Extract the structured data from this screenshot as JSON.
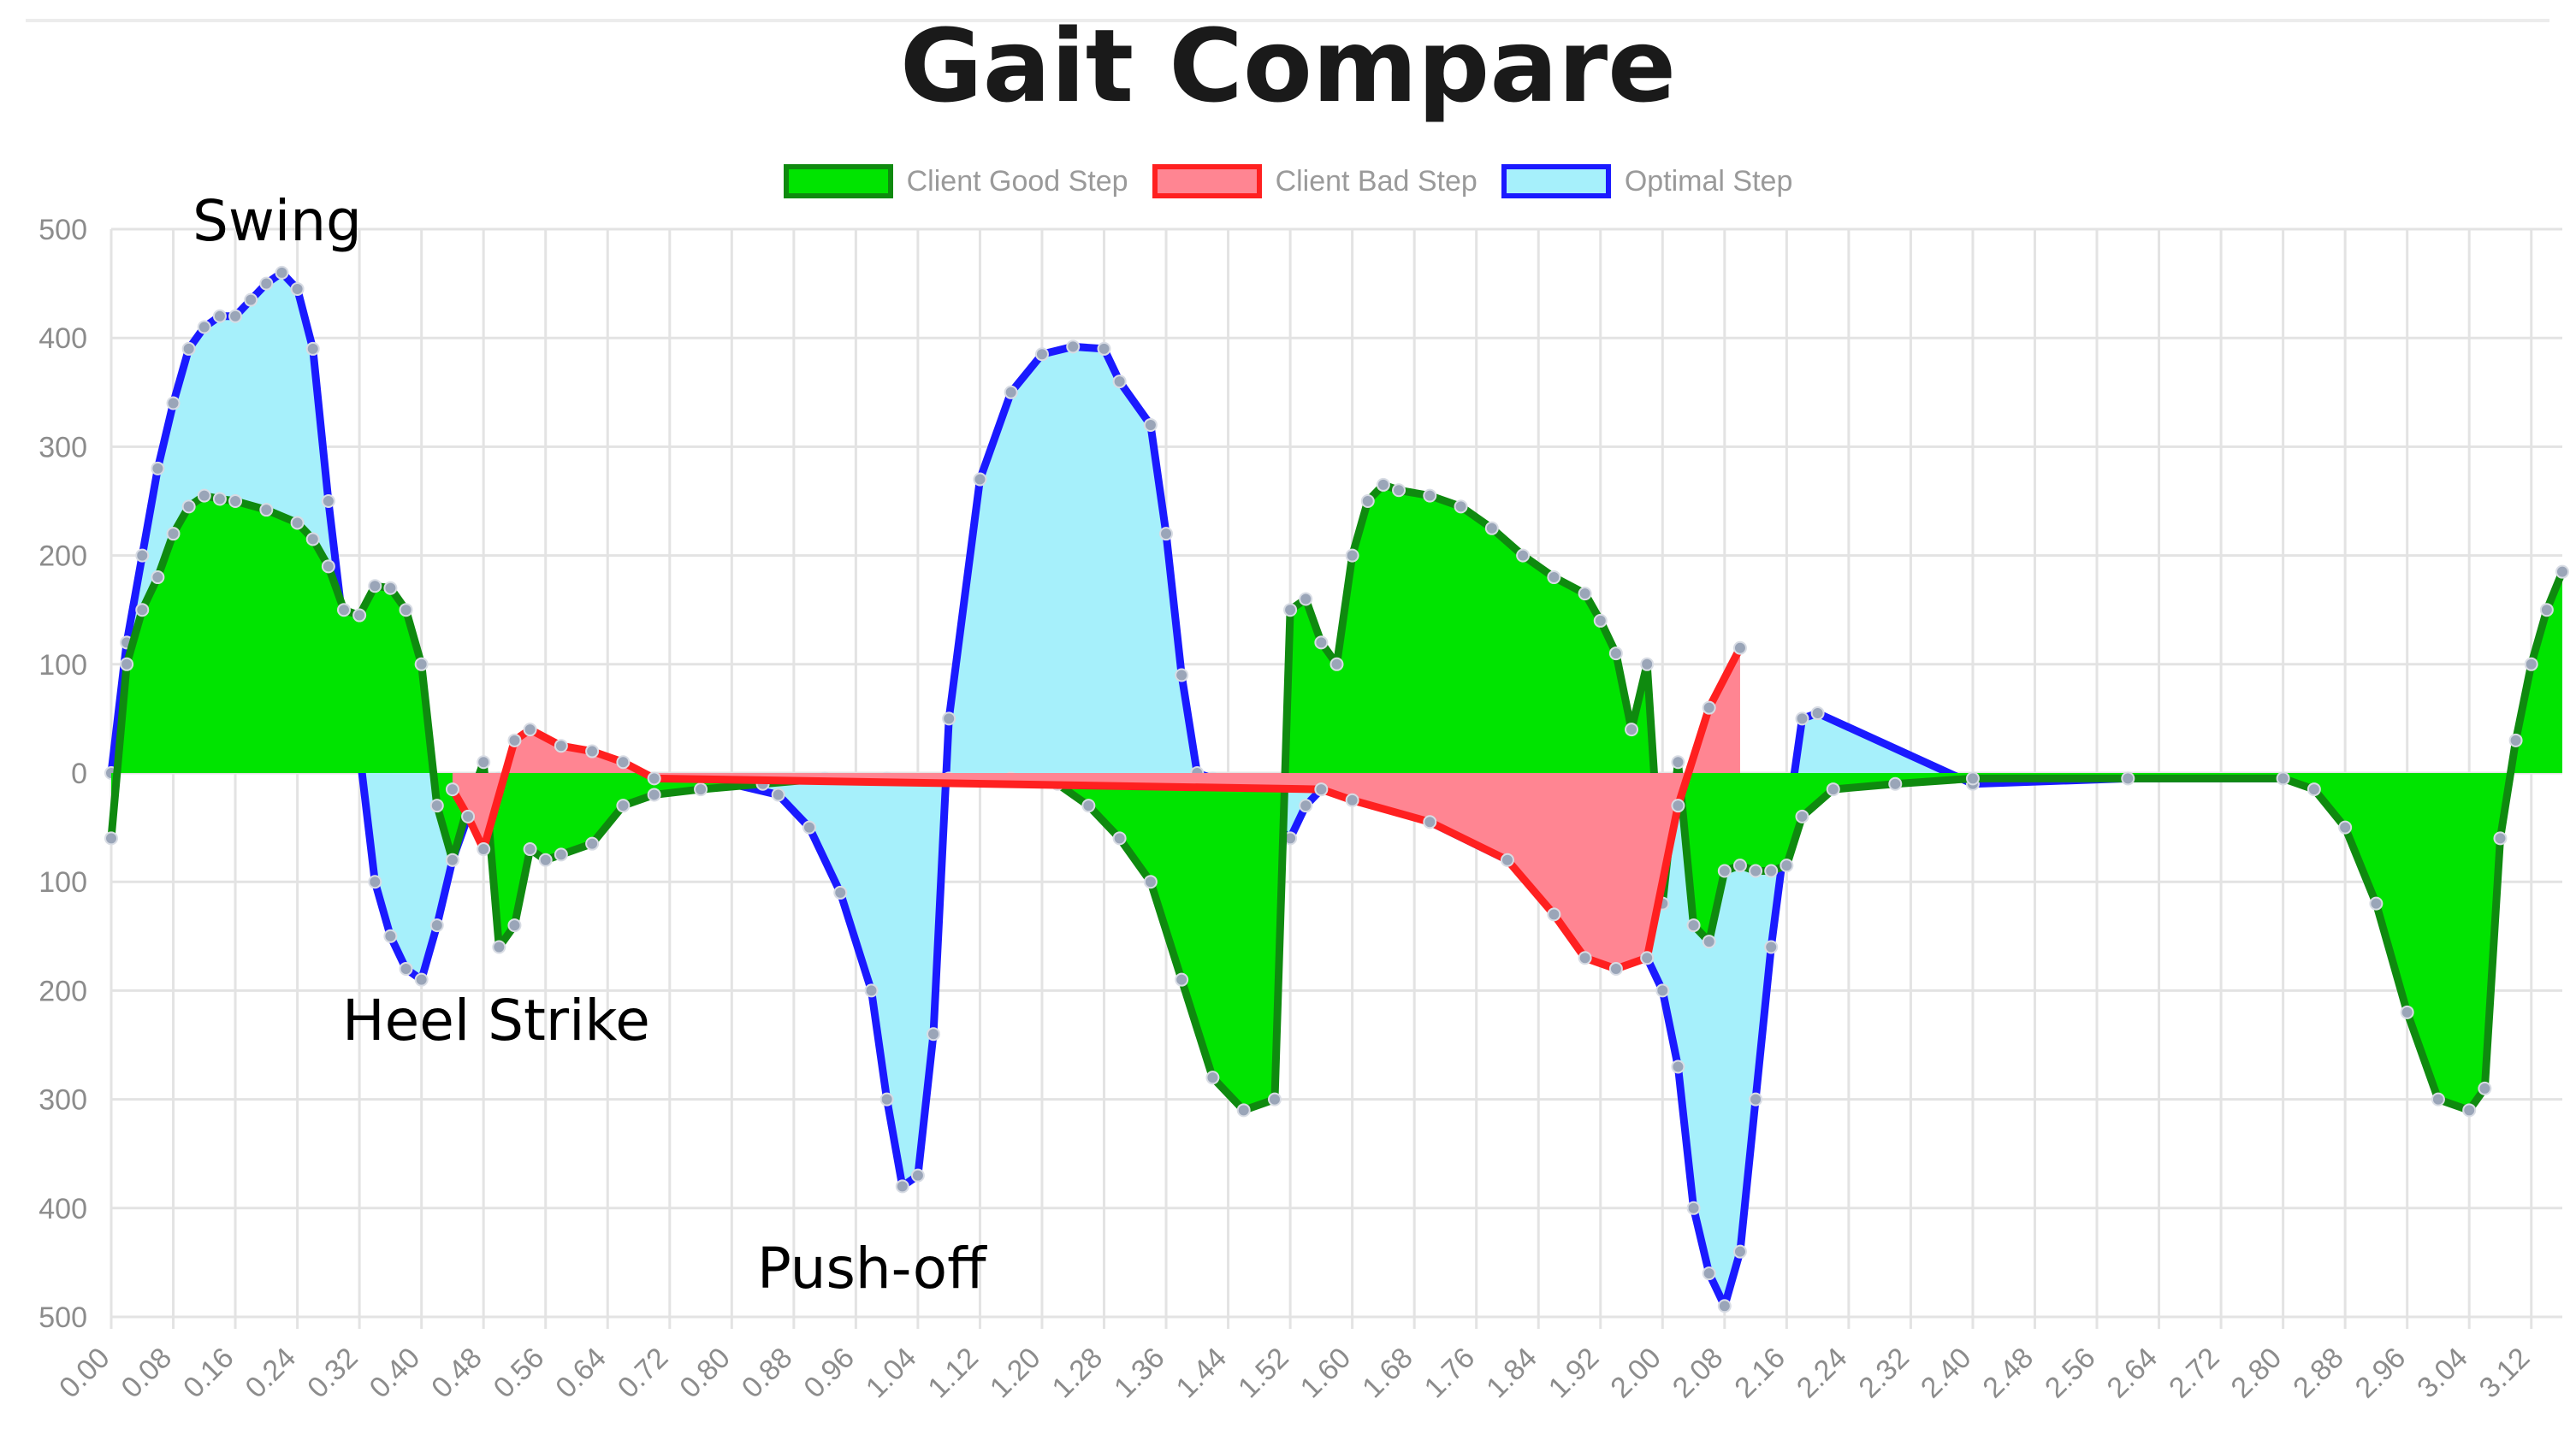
{
  "chart_data": {
    "type": "area",
    "title": "Gait Compare",
    "xlabel": "",
    "ylabel": "",
    "ylim": [
      -500,
      500
    ],
    "yticks": [
      500,
      400,
      300,
      200,
      100,
      0,
      -100,
      -200,
      -300,
      -400,
      -500
    ],
    "ytick_labels": [
      "500",
      "400",
      "300",
      "200",
      "100",
      "0",
      "100",
      "200",
      "300",
      "400",
      "500"
    ],
    "xlim": [
      0,
      3.16
    ],
    "xtick_labels": [
      "0.00",
      "0.08",
      "0.16",
      "0.24",
      "0.32",
      "0.40",
      "0.48",
      "0.56",
      "0.64",
      "0.72",
      "0.80",
      "0.88",
      "0.96",
      "1.04",
      "1.12",
      "1.20",
      "1.28",
      "1.36",
      "1.44",
      "1.52",
      "1.60",
      "1.68",
      "1.76",
      "1.84",
      "1.92",
      "2.00",
      "2.08",
      "2.16",
      "2.24",
      "2.32",
      "2.40",
      "2.48",
      "2.56",
      "2.64",
      "2.72",
      "2.80",
      "2.88",
      "2.96",
      "3.04",
      "3.12"
    ],
    "grid": true,
    "legend_position": "top",
    "colors": {
      "good_fill": "#00e400",
      "good_line": "#0f8a0f",
      "bad_fill": "#ff8592",
      "bad_line": "#ff2020",
      "optimal_fill": "#a6f0fb",
      "optimal_line": "#1a1aff"
    },
    "series": [
      {
        "name": "Client Good Step",
        "x": [
          0.0,
          0.02,
          0.04,
          0.06,
          0.08,
          0.1,
          0.12,
          0.14,
          0.16,
          0.2,
          0.24,
          0.26,
          0.28,
          0.3,
          0.32,
          0.34,
          0.36,
          0.38,
          0.4,
          0.42,
          0.44,
          0.46,
          0.48,
          0.5,
          0.52,
          0.54,
          0.56,
          0.58,
          0.62,
          0.66,
          0.7,
          0.76,
          0.84,
          0.92,
          1.0,
          1.08,
          1.16,
          1.22,
          1.26,
          1.3,
          1.34,
          1.38,
          1.42,
          1.46,
          1.5,
          1.52,
          1.54,
          1.56,
          1.58,
          1.6,
          1.62,
          1.64,
          1.66,
          1.7,
          1.74,
          1.78,
          1.82,
          1.86,
          1.9,
          1.92,
          1.94,
          1.96,
          1.98,
          2.0,
          2.02,
          2.04,
          2.06,
          2.08,
          2.1,
          2.12,
          2.14,
          2.16,
          2.18,
          2.22,
          2.3,
          2.4,
          2.6,
          2.8,
          2.84,
          2.88,
          2.92,
          2.96,
          3.0,
          3.04,
          3.06,
          3.08,
          3.1,
          3.12,
          3.14,
          3.16
        ],
        "values": [
          -60,
          100,
          150,
          180,
          220,
          245,
          255,
          252,
          250,
          242,
          230,
          215,
          190,
          150,
          145,
          172,
          170,
          150,
          100,
          -30,
          -80,
          -30,
          10,
          -160,
          -140,
          -70,
          -80,
          -75,
          -65,
          -30,
          -20,
          -15,
          -10,
          -5,
          -5,
          -5,
          -5,
          -10,
          -30,
          -60,
          -100,
          -190,
          -280,
          -310,
          -300,
          150,
          160,
          120,
          100,
          200,
          250,
          265,
          260,
          255,
          245,
          225,
          200,
          180,
          165,
          140,
          110,
          40,
          100,
          -120,
          10,
          -140,
          -155,
          -90,
          -85,
          -90,
          -90,
          -85,
          -40,
          -15,
          -10,
          -5,
          -5,
          -5,
          -15,
          -50,
          -120,
          -220,
          -300,
          -310,
          -290,
          -60,
          30,
          100,
          150,
          185
        ]
      },
      {
        "name": "Client Bad Step",
        "x": [
          0.44,
          0.46,
          0.48,
          0.52,
          0.54,
          0.58,
          0.62,
          0.66,
          0.7,
          1.56,
          1.6,
          1.7,
          1.8,
          1.86,
          1.9,
          1.94,
          1.98,
          2.02,
          2.06,
          2.1
        ],
        "values": [
          -15,
          -40,
          -70,
          30,
          40,
          25,
          20,
          10,
          -5,
          -15,
          -25,
          -45,
          -80,
          -130,
          -170,
          -180,
          -170,
          -30,
          60,
          115
        ]
      },
      {
        "name": "Optimal Step",
        "x": [
          0.0,
          0.02,
          0.04,
          0.06,
          0.08,
          0.1,
          0.12,
          0.14,
          0.16,
          0.18,
          0.2,
          0.22,
          0.24,
          0.26,
          0.28,
          0.3,
          0.32,
          0.34,
          0.36,
          0.38,
          0.4,
          0.42,
          0.44,
          0.46,
          0.48,
          0.5,
          0.6,
          0.7,
          0.8,
          0.86,
          0.9,
          0.94,
          0.98,
          1.0,
          1.02,
          1.04,
          1.06,
          1.08,
          1.12,
          1.16,
          1.2,
          1.24,
          1.28,
          1.3,
          1.34,
          1.36,
          1.38,
          1.4,
          1.42,
          1.52,
          1.54,
          1.56,
          1.6,
          1.7,
          1.8,
          1.9,
          1.98,
          2.0,
          2.02,
          2.04,
          2.06,
          2.08,
          2.1,
          2.12,
          2.14,
          2.16,
          2.18,
          2.2,
          2.4,
          2.6,
          2.8
        ],
        "values": [
          0,
          120,
          200,
          280,
          340,
          390,
          410,
          420,
          420,
          435,
          450,
          460,
          445,
          390,
          250,
          130,
          20,
          -100,
          -150,
          -180,
          -190,
          -140,
          -80,
          -40,
          -10,
          -5,
          -5,
          -8,
          -10,
          -20,
          -50,
          -110,
          -200,
          -300,
          -380,
          -370,
          -240,
          50,
          270,
          350,
          385,
          392,
          390,
          360,
          320,
          220,
          90,
          0,
          -5,
          -60,
          -30,
          -15,
          -20,
          -45,
          -80,
          -130,
          -170,
          -200,
          -270,
          -400,
          -460,
          -490,
          -440,
          -300,
          -160,
          -50,
          50,
          55,
          -10,
          -5,
          -5
        ]
      }
    ],
    "annotations": [
      "Swing",
      "Heel Strike",
      "Push-off"
    ]
  }
}
